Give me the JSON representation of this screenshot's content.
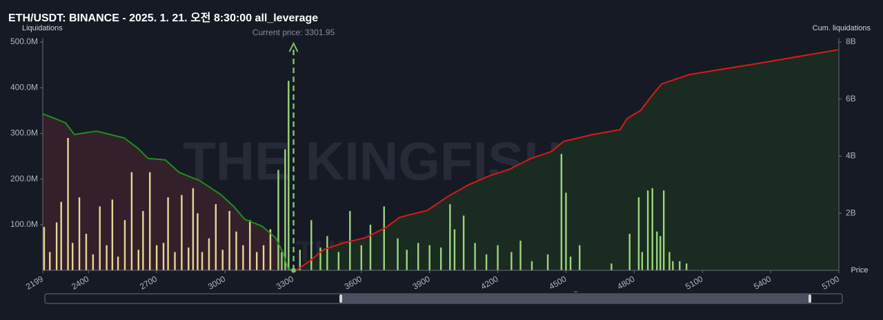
{
  "chart_data": {
    "type": "liquidation-map",
    "title": "ETH/USDT: BINANCE - 2025. 1. 21. 오전 8:30:00 all_leverage",
    "y_label": "Liquidations",
    "y2_label": "Cum. liquidations",
    "x_label": "Price",
    "annotation": "Current price: 3301.95",
    "current_price": 3301.95,
    "watermark": "THE KINGFISHER.io",
    "xlim": [
      2199,
      5700
    ],
    "xticks": [
      2199,
      2400,
      2700,
      3000,
      3300,
      3600,
      3900,
      4200,
      4500,
      4800,
      5100,
      5400,
      5700
    ],
    "ylim": [
      0,
      500000000
    ],
    "yticks": [
      {
        "value": 100000000,
        "label": "100.0M"
      },
      {
        "value": 200000000,
        "label": "200.0M"
      },
      {
        "value": 300000000,
        "label": "300.0M"
      },
      {
        "value": 400000000,
        "label": "400.0M"
      },
      {
        "value": 500000000,
        "label": "500.0M"
      }
    ],
    "y2lim": [
      0,
      8000000000
    ],
    "y2ticks": [
      {
        "value": 2000000000,
        "label": "2B"
      },
      {
        "value": 4000000000,
        "label": "4B"
      },
      {
        "value": 6000000000,
        "label": "6B"
      },
      {
        "value": 8000000000,
        "label": "8B"
      }
    ],
    "grid": false,
    "series": [
      {
        "type": "area",
        "axis": "y2",
        "color": "#1f8f1f",
        "fill": "#34202a",
        "x": [
          2199,
          2299,
          2338,
          2435,
          2496,
          2557,
          2617,
          2663,
          2738,
          2799,
          2890,
          2981,
          3041,
          3087,
          3163,
          3223,
          3254,
          3278,
          3301
        ],
        "values": [
          5490000000,
          5170000000,
          4760000000,
          4880000000,
          4760000000,
          4640000000,
          4280000000,
          3920000000,
          3870000000,
          3430000000,
          3140000000,
          2660000000,
          2220000000,
          1790000000,
          1550000000,
          1140000000,
          650000000,
          50000000,
          0
        ]
      },
      {
        "type": "area",
        "axis": "y2",
        "color": "#e01818",
        "fill": "#1a2c22",
        "x": [
          3314,
          3375,
          3435,
          3526,
          3617,
          3708,
          3769,
          3890,
          3981,
          4072,
          4163,
          4254,
          4345,
          4435,
          4490,
          4617,
          4738,
          4769,
          4829,
          4875,
          4920,
          5041,
          5344,
          5696
        ],
        "values": [
          0,
          340000000,
          730000000,
          970000000,
          1140000000,
          1500000000,
          1860000000,
          2100000000,
          2590000000,
          3000000000,
          3310000000,
          3550000000,
          3920000000,
          4160000000,
          4520000000,
          4760000000,
          4930000000,
          5320000000,
          5610000000,
          6090000000,
          6530000000,
          6860000000,
          7250000000,
          7730000000
        ]
      },
      {
        "type": "bar",
        "color": "#e3d996",
        "x": [
          2205,
          2230,
          2260,
          2280,
          2310,
          2330,
          2360,
          2390,
          2420,
          2450,
          2480,
          2505,
          2530,
          2560,
          2590,
          2620,
          2640,
          2670,
          2700,
          2730,
          2750,
          2780,
          2810,
          2840,
          2860,
          2880,
          2900,
          2930,
          2960,
          2990,
          3020,
          3050,
          3080,
          3110,
          3140,
          3170,
          3200
        ],
        "values": [
          95000000,
          40000000,
          105000000,
          150000000,
          290000000,
          60000000,
          160000000,
          80000000,
          35000000,
          140000000,
          55000000,
          155000000,
          30000000,
          110000000,
          215000000,
          45000000,
          130000000,
          215000000,
          55000000,
          60000000,
          160000000,
          40000000,
          165000000,
          50000000,
          180000000,
          125000000,
          40000000,
          70000000,
          145000000,
          45000000,
          130000000,
          85000000,
          55000000,
          110000000,
          40000000,
          55000000,
          90000000
        ]
      },
      {
        "type": "bar",
        "color": "#9dd47e",
        "x": [
          3235,
          3250,
          3265,
          3280,
          3330,
          3380,
          3420,
          3450,
          3500,
          3550,
          3600,
          3640,
          3700,
          3760,
          3800,
          3850,
          3900,
          3950,
          3990,
          4010,
          4050,
          4100,
          4150,
          4200,
          4260,
          4300,
          4350,
          4420,
          4480,
          4500,
          4520,
          4560,
          4700,
          4780,
          4820,
          4835,
          4860,
          4880,
          4900,
          4915,
          4930,
          4955,
          4970,
          5000,
          5030
        ],
        "values": [
          220000000,
          40000000,
          265000000,
          415000000,
          45000000,
          110000000,
          50000000,
          75000000,
          40000000,
          130000000,
          55000000,
          100000000,
          140000000,
          70000000,
          45000000,
          60000000,
          55000000,
          50000000,
          145000000,
          90000000,
          120000000,
          60000000,
          35000000,
          55000000,
          40000000,
          65000000,
          20000000,
          35000000,
          255000000,
          170000000,
          30000000,
          55000000,
          15000000,
          80000000,
          160000000,
          40000000,
          175000000,
          180000000,
          85000000,
          75000000,
          175000000,
          40000000,
          20000000,
          20000000,
          15000000
        ]
      }
    ]
  }
}
